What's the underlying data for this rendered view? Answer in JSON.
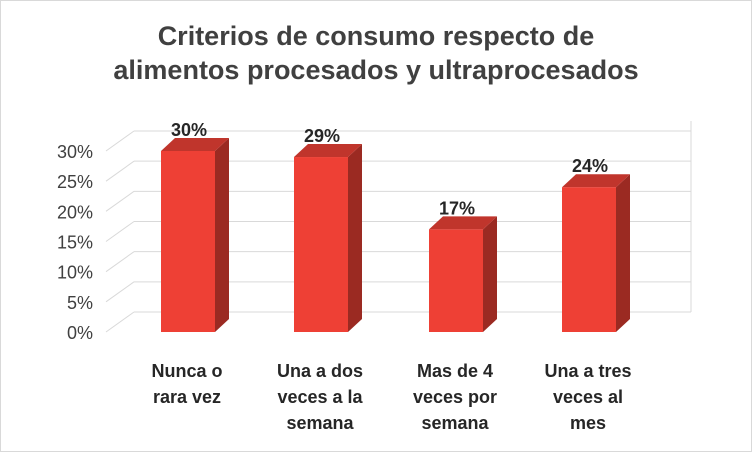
{
  "chart_data": {
    "type": "bar",
    "style": "3d-column",
    "title_lines": [
      "Criterios de consumo respecto de",
      "alimentos procesados y ultraprocesados"
    ],
    "categories": [
      [
        "Nunca o",
        "rara vez"
      ],
      [
        "Una a dos",
        "veces a la",
        "semana"
      ],
      [
        "Mas de 4",
        "veces por",
        "semana"
      ],
      [
        "Una a tres",
        "veces al",
        "mes"
      ]
    ],
    "values": [
      30,
      29,
      17,
      24
    ],
    "data_labels": [
      "30%",
      "29%",
      "17%",
      "24%"
    ],
    "y_ticks": [
      "0%",
      "5%",
      "10%",
      "15%",
      "20%",
      "25%",
      "30%"
    ],
    "ylim": [
      0,
      30
    ],
    "grid": true,
    "colors": {
      "bar_front": "#ee4035",
      "bar_side": "#9b2a22",
      "bar_top": "#c0352c",
      "grid": "#d9d9d9"
    }
  }
}
